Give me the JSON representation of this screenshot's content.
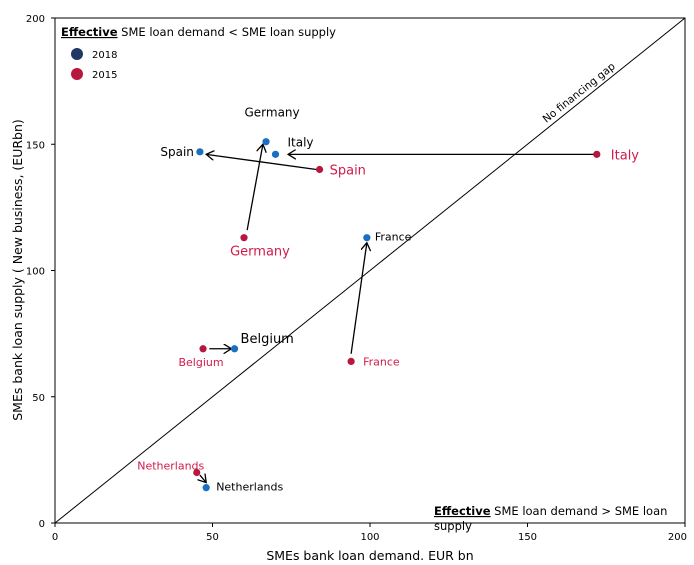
{
  "chart_data": {
    "type": "scatter",
    "xlabel": "SMEs bank loan demand. EUR bn",
    "ylabel": "SMEs bank loan supply ( New business, (EURbn)",
    "xlim": [
      0,
      200
    ],
    "ylim": [
      0,
      200
    ],
    "xticks": [
      "0",
      "50",
      "100",
      "150",
      "200"
    ],
    "yticks": [
      "0",
      "50",
      "100",
      "150",
      "200"
    ],
    "diagonal_label": "No financing gap",
    "note_top": {
      "bold": "Effective",
      "text": " SME loan demand < SME loan supply"
    },
    "note_bottom": {
      "bold": "Effective",
      "text": " SME loan demand > SME loan",
      "text2": "supply"
    },
    "colors": {
      "2018": "#1a6fc2",
      "2015": "#b5173e",
      "legend_2018": "#1f3864",
      "legend_2015": "#b5173e",
      "label_2015": "#d11a4a"
    },
    "series": [
      {
        "name": "2018",
        "points": [
          {
            "label": "Germany",
            "x": 67,
            "y": 151
          },
          {
            "label": "Italy",
            "x": 70,
            "y": 146
          },
          {
            "label": "Spain",
            "x": 46,
            "y": 147
          },
          {
            "label": "France",
            "x": 99,
            "y": 113
          },
          {
            "label": "Belgium",
            "x": 57,
            "y": 69
          },
          {
            "label": "Netherlands",
            "x": 48,
            "y": 14
          }
        ]
      },
      {
        "name": "2015",
        "points": [
          {
            "label": "Italy",
            "x": 172,
            "y": 146
          },
          {
            "label": "Spain",
            "x": 84,
            "y": 140
          },
          {
            "label": "Germany",
            "x": 60,
            "y": 113
          },
          {
            "label": "France",
            "x": 94,
            "y": 64
          },
          {
            "label": "Belgium",
            "x": 47,
            "y": 69
          },
          {
            "label": "Netherlands",
            "x": 45,
            "y": 20
          }
        ]
      }
    ],
    "arrows": [
      {
        "country": "Italy",
        "from": [
          171,
          146
        ],
        "to": [
          74,
          146
        ]
      },
      {
        "country": "Spain",
        "from": [
          83,
          140
        ],
        "to": [
          48,
          146
        ]
      },
      {
        "country": "Germany",
        "from": [
          61,
          116
        ],
        "to": [
          66,
          150
        ]
      },
      {
        "country": "France",
        "from": [
          94,
          67
        ],
        "to": [
          99,
          111
        ]
      },
      {
        "country": "Belgium",
        "from": [
          49,
          69
        ],
        "to": [
          56,
          69
        ]
      },
      {
        "country": "Netherlands",
        "from": [
          46,
          19
        ],
        "to": [
          48,
          16
        ]
      }
    ]
  }
}
